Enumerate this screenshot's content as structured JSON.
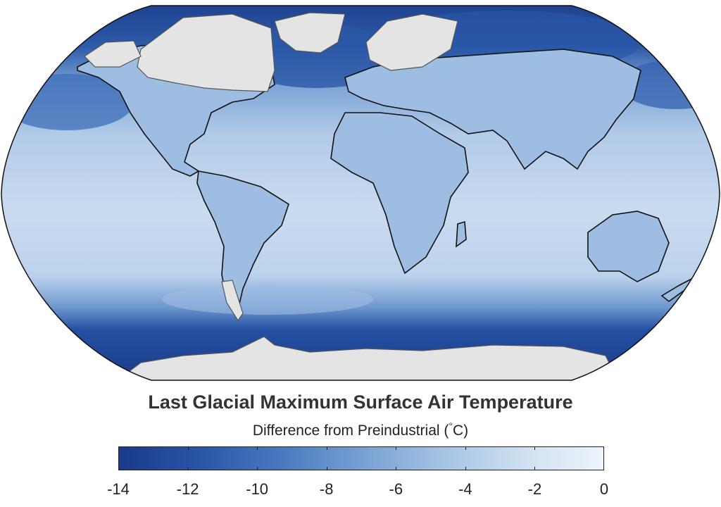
{
  "title": "Last Glacial Maximum Surface Air Temperature",
  "subtitle_prefix": "Difference from Preindustrial (",
  "subtitle_degree": "°",
  "subtitle_unit": "C)",
  "colorbar": {
    "min": -14,
    "max": 0,
    "ticks": [
      -14,
      -12,
      -10,
      -8,
      -6,
      -4,
      -2,
      0
    ],
    "tick_labels": [
      "-14",
      "-12",
      "-10",
      "-8",
      "-6",
      "-4",
      "-2",
      "0"
    ],
    "colors": [
      "#1a3a8a",
      "#2a55a8",
      "#4a78bf",
      "#76a0d3",
      "#a5c3e4",
      "#cfe0f1",
      "#eef4fb"
    ]
  },
  "map": {
    "projection": "Robinson",
    "ocean_base_color": "#c3d7ee",
    "ice_color": "#e6e6e6",
    "coastline_color": "#111111"
  }
}
